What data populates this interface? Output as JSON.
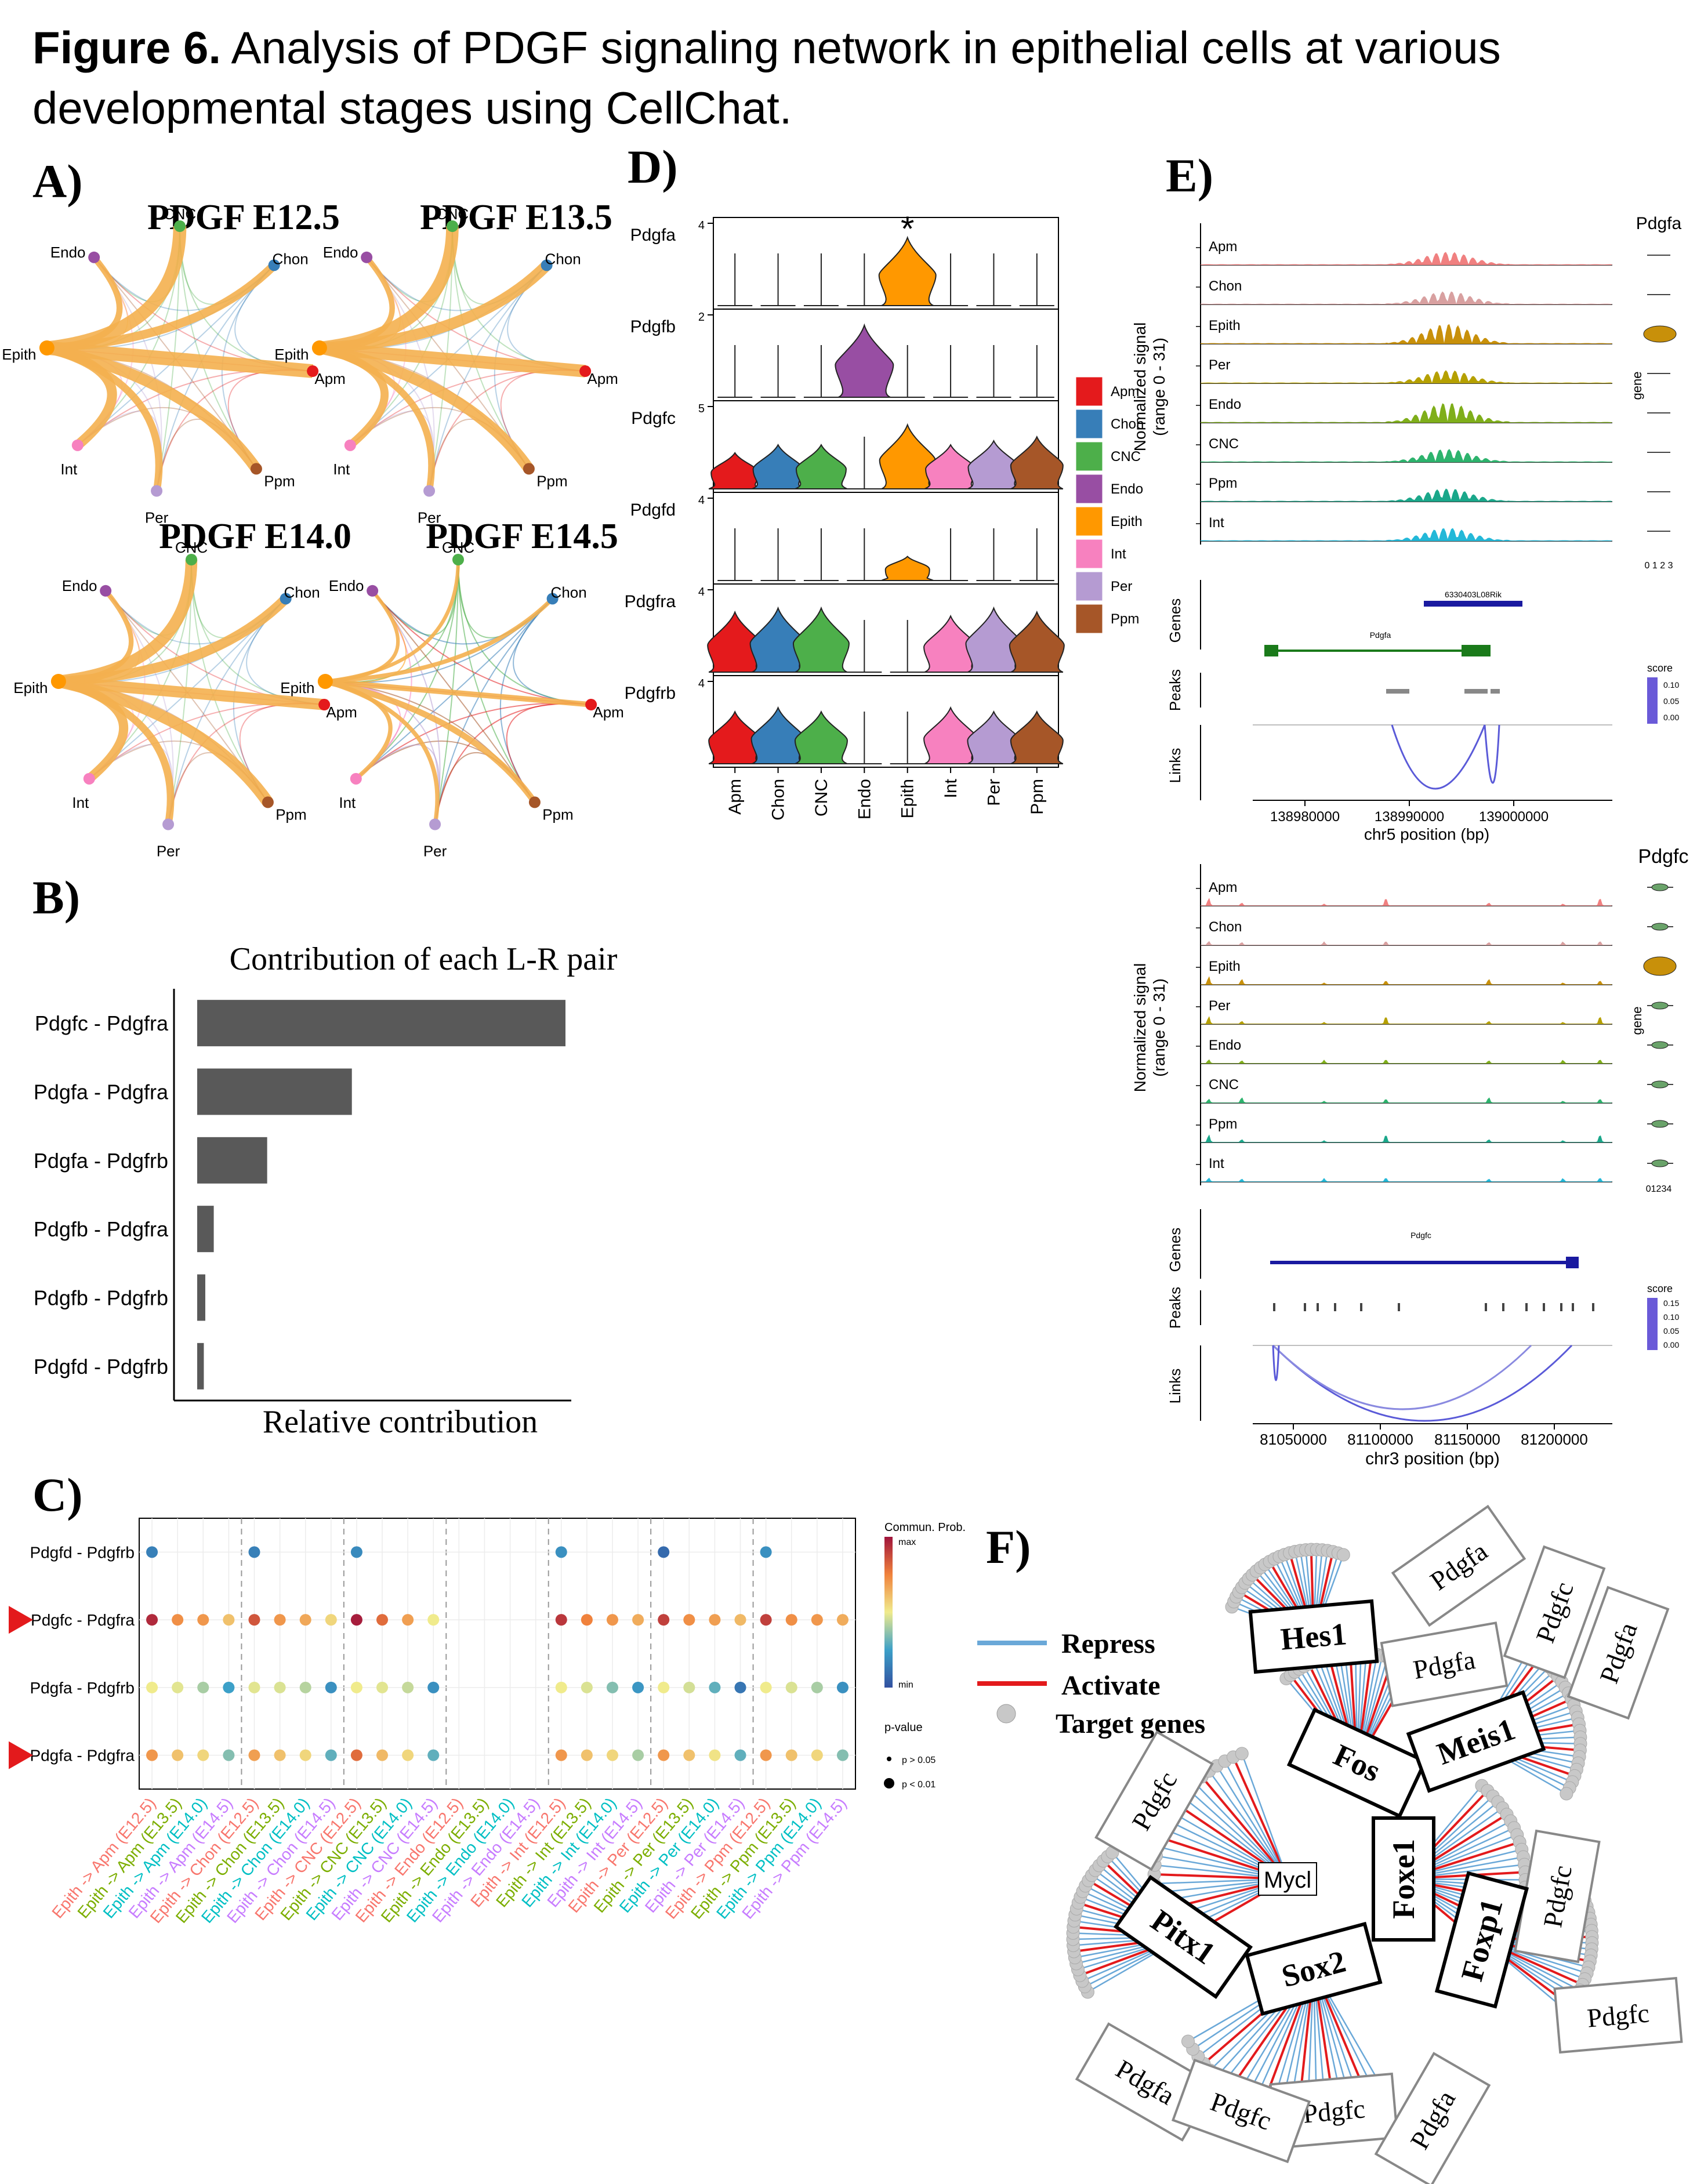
{
  "caption": {
    "label": "Figure 6.",
    "text": "Analysis of PDGF signaling network in epithelial cells at various developmental stages using CellChat."
  },
  "panels": {
    "A": "A)",
    "B": "B)",
    "C": "C)",
    "D": "D)",
    "E": "E)",
    "F": "F)"
  },
  "colors": {
    "Apm": "#e41a1c",
    "Chon": "#377eb8",
    "CNC": "#4daf4a",
    "Endo": "#984ea3",
    "Epith": "#ff9800",
    "Int": "#f781bf",
    "Per": "#b59bd2",
    "Ppm": "#a65628",
    "edge_main": "#f4b04f",
    "bar": "#595959",
    "repress": "#6aa8d8",
    "activate": "#e31a1c",
    "target": "#c8c8c8"
  },
  "panelA": {
    "networks": [
      {
        "title": "PDGF E12.5",
        "weights": {
          "Apm": 0.9,
          "Chon": 0.5,
          "CNC": 0.85,
          "Endo": 0.3,
          "Int": 0.6,
          "Per": 0.4,
          "Ppm": 0.7
        }
      },
      {
        "title": "PDGF E13.5",
        "weights": {
          "Apm": 0.8,
          "Chon": 0.7,
          "CNC": 0.8,
          "Endo": 0.25,
          "Int": 0.45,
          "Per": 0.35,
          "Ppm": 0.7
        }
      },
      {
        "title": "PDGF E14.0",
        "weights": {
          "Apm": 0.7,
          "Chon": 0.6,
          "CNC": 0.75,
          "Endo": 0.2,
          "Int": 0.55,
          "Per": 0.4,
          "Ppm": 0.75
        }
      },
      {
        "title": "PDGF E14.5",
        "weights": {
          "Apm": 0.25,
          "Chon": 0.15,
          "CNC": 0.1,
          "Endo": 0.1,
          "Int": 0.15,
          "Per": 0.15,
          "Ppm": 0.3
        }
      }
    ],
    "nodes": [
      "CNC",
      "Chon",
      "Apm",
      "Ppm",
      "Per",
      "Int",
      "Epith",
      "Endo"
    ]
  },
  "panelB": {
    "chart_data": {
      "type": "bar",
      "title": "Contribution of each L-R pair",
      "xlabel": "Relative contribution",
      "ylabel": "",
      "categories": [
        "Pdgfc  - Pdgfra",
        "Pdgfa  - Pdgfra",
        "Pdgfa  - Pdgfrb",
        "Pdgfb  - Pdgfra",
        "Pdgfb  - Pdgfrb",
        "Pdgfd  - Pdgfrb"
      ],
      "values": [
        1.0,
        0.42,
        0.19,
        0.045,
        0.022,
        0.018
      ],
      "xlim": [
        0,
        1.0
      ]
    }
  },
  "panelC": {
    "rows": [
      "Pdgfd  - Pdgfrb",
      "Pdgfc  - Pdgfra",
      "Pdgfa  - Pdgfrb",
      "Pdgfa  - Pdgfra"
    ],
    "arrow_rows": [
      1,
      3
    ],
    "columns": [
      "Epith -> Apm (E12.5)",
      "Epith -> Apm (E13.5)",
      "Epith -> Apm (E14.0)",
      "Epith -> Apm (E14.5)",
      "Epith -> Chon (E12.5)",
      "Epith -> Chon (E13.5)",
      "Epith -> Chon (E14.0)",
      "Epith -> Chon (E14.5)",
      "Epith -> CNC (E12.5)",
      "Epith -> CNC (E13.5)",
      "Epith -> CNC (E14.0)",
      "Epith -> CNC (E14.5)",
      "Epith -> Endo (E12.5)",
      "Epith -> Endo (E13.5)",
      "Epith -> Endo (E14.0)",
      "Epith -> Endo (E14.5)",
      "Epith -> Int (E12.5)",
      "Epith -> Int (E13.5)",
      "Epith -> Int (E14.0)",
      "Epith -> Int (E14.5)",
      "Epith -> Per (E12.5)",
      "Epith -> Per (E13.5)",
      "Epith -> Per (E14.0)",
      "Epith -> Per (E14.5)",
      "Epith -> Ppm (E12.5)",
      "Epith -> Ppm (E13.5)",
      "Epith -> Ppm (E14.0)",
      "Epith -> Ppm (E14.5)"
    ],
    "column_colors": [
      "#f8766d",
      "#7cae00",
      "#00bfc4",
      "#c77cff"
    ],
    "values": [
      [
        0.15,
        null,
        null,
        null,
        0.15,
        null,
        null,
        null,
        0.18,
        null,
        null,
        null,
        null,
        null,
        null,
        null,
        0.2,
        null,
        null,
        null,
        0.08,
        null,
        null,
        null,
        0.2,
        null,
        null,
        null
      ],
      [
        0.95,
        0.72,
        0.7,
        0.6,
        0.85,
        0.7,
        0.66,
        0.55,
        0.98,
        0.8,
        0.68,
        0.5,
        null,
        null,
        null,
        null,
        0.92,
        0.75,
        0.7,
        0.65,
        0.9,
        0.72,
        0.68,
        0.62,
        0.9,
        0.72,
        0.7,
        0.65
      ],
      [
        0.5,
        0.48,
        0.4,
        0.25,
        0.48,
        0.47,
        0.42,
        0.2,
        0.5,
        0.48,
        0.44,
        0.2,
        null,
        null,
        null,
        null,
        0.5,
        0.47,
        0.35,
        0.22,
        0.5,
        0.46,
        0.3,
        0.12,
        0.5,
        0.47,
        0.4,
        0.2
      ],
      [
        0.7,
        0.6,
        0.55,
        0.35,
        0.68,
        0.6,
        0.55,
        0.3,
        0.8,
        0.62,
        0.55,
        0.3,
        null,
        null,
        null,
        null,
        0.7,
        0.6,
        0.55,
        0.4,
        0.7,
        0.6,
        0.52,
        0.3,
        0.7,
        0.6,
        0.55,
        0.35
      ]
    ],
    "legend": {
      "title": "Commun. Prob.",
      "max": "max",
      "min": "min",
      "pvalue_title": "p-value",
      "p1": "p > 0.05",
      "p2": "p < 0.01"
    }
  },
  "panelD": {
    "genes": [
      {
        "name": "Pdgfa",
        "max": "4"
      },
      {
        "name": "Pdgfb",
        "max": "2"
      },
      {
        "name": "Pdgfc",
        "max": "5"
      },
      {
        "name": "Pdgfd",
        "max": "4"
      },
      {
        "name": "Pdgfra",
        "max": "4"
      },
      {
        "name": "Pdgfrb",
        "max": "4"
      }
    ],
    "celltypes": [
      "Apm",
      "Chon",
      "CNC",
      "Endo",
      "Epith",
      "Int",
      "Per",
      "Ppm"
    ],
    "levels": [
      [
        0,
        0,
        0,
        0,
        0.85,
        0,
        0,
        0
      ],
      [
        0,
        0,
        0,
        0.9,
        0,
        0,
        0,
        0
      ],
      [
        0.45,
        0.55,
        0.55,
        0,
        0.8,
        0.55,
        0.6,
        0.65
      ],
      [
        0,
        0,
        0,
        0,
        0.3,
        0,
        0,
        0
      ],
      [
        0.75,
        0.8,
        0.8,
        0,
        0,
        0.7,
        0.8,
        0.75
      ],
      [
        0.65,
        0.7,
        0.65,
        0,
        0,
        0.7,
        0.65,
        0.65
      ]
    ],
    "asterisk": "*"
  },
  "panelE": {
    "top": {
      "gene_title": "Pdgfa",
      "ylabel": "Normalized signal\n(range 0 - 31)",
      "tracks": [
        "Apm",
        "Chon",
        "Epith",
        "Per",
        "Endo",
        "CNC",
        "Ppm",
        "Int"
      ],
      "side_label": "gene",
      "side_ticks": "0 1 2 3",
      "genes_label": "Genes",
      "peaks_label": "Peaks",
      "links_label": "Links",
      "gene_name": "Pdgfa",
      "gene_name2": "6330403L08Rik",
      "score_title": "score",
      "score_ticks": [
        "0.10",
        "0.05",
        "0.00"
      ],
      "xticks": [
        "138980000",
        "138990000",
        "139000000"
      ],
      "xlabel": "chr5 position (bp)"
    },
    "bottom": {
      "gene_title": "Pdgfc",
      "ylabel": "Normalized signal\n(range 0 - 31)",
      "tracks": [
        "Apm",
        "Chon",
        "Epith",
        "Per",
        "Endo",
        "CNC",
        "Ppm",
        "Int"
      ],
      "side_label": "gene",
      "side_ticks": "01234",
      "genes_label": "Genes",
      "peaks_label": "Peaks",
      "links_label": "Links",
      "gene_name": "Pdgfc",
      "score_title": "score",
      "score_ticks": [
        "0.15",
        "0.10",
        "0.05",
        "0.00"
      ],
      "xticks": [
        "81050000",
        "81100000",
        "81150000",
        "81200000"
      ],
      "xlabel": "chr3 position (bp)"
    }
  },
  "panelF": {
    "legend": {
      "repress": "Repress",
      "activate": "Activate",
      "targets": "Target genes"
    },
    "tfs": [
      "Hes1",
      "Fos",
      "Meis1",
      "Foxe1",
      "Foxp1",
      "Pitx1",
      "Sox2",
      "Mycl"
    ],
    "targets": [
      "Pdgfa",
      "Pdgfc",
      "Pdgfa",
      "Pdgfa",
      "Pdgfc",
      "Pdgfc",
      "Pdgfc",
      "Pdgfa",
      "Pdgfc",
      "Pdgfa",
      "Pdgfc"
    ]
  }
}
